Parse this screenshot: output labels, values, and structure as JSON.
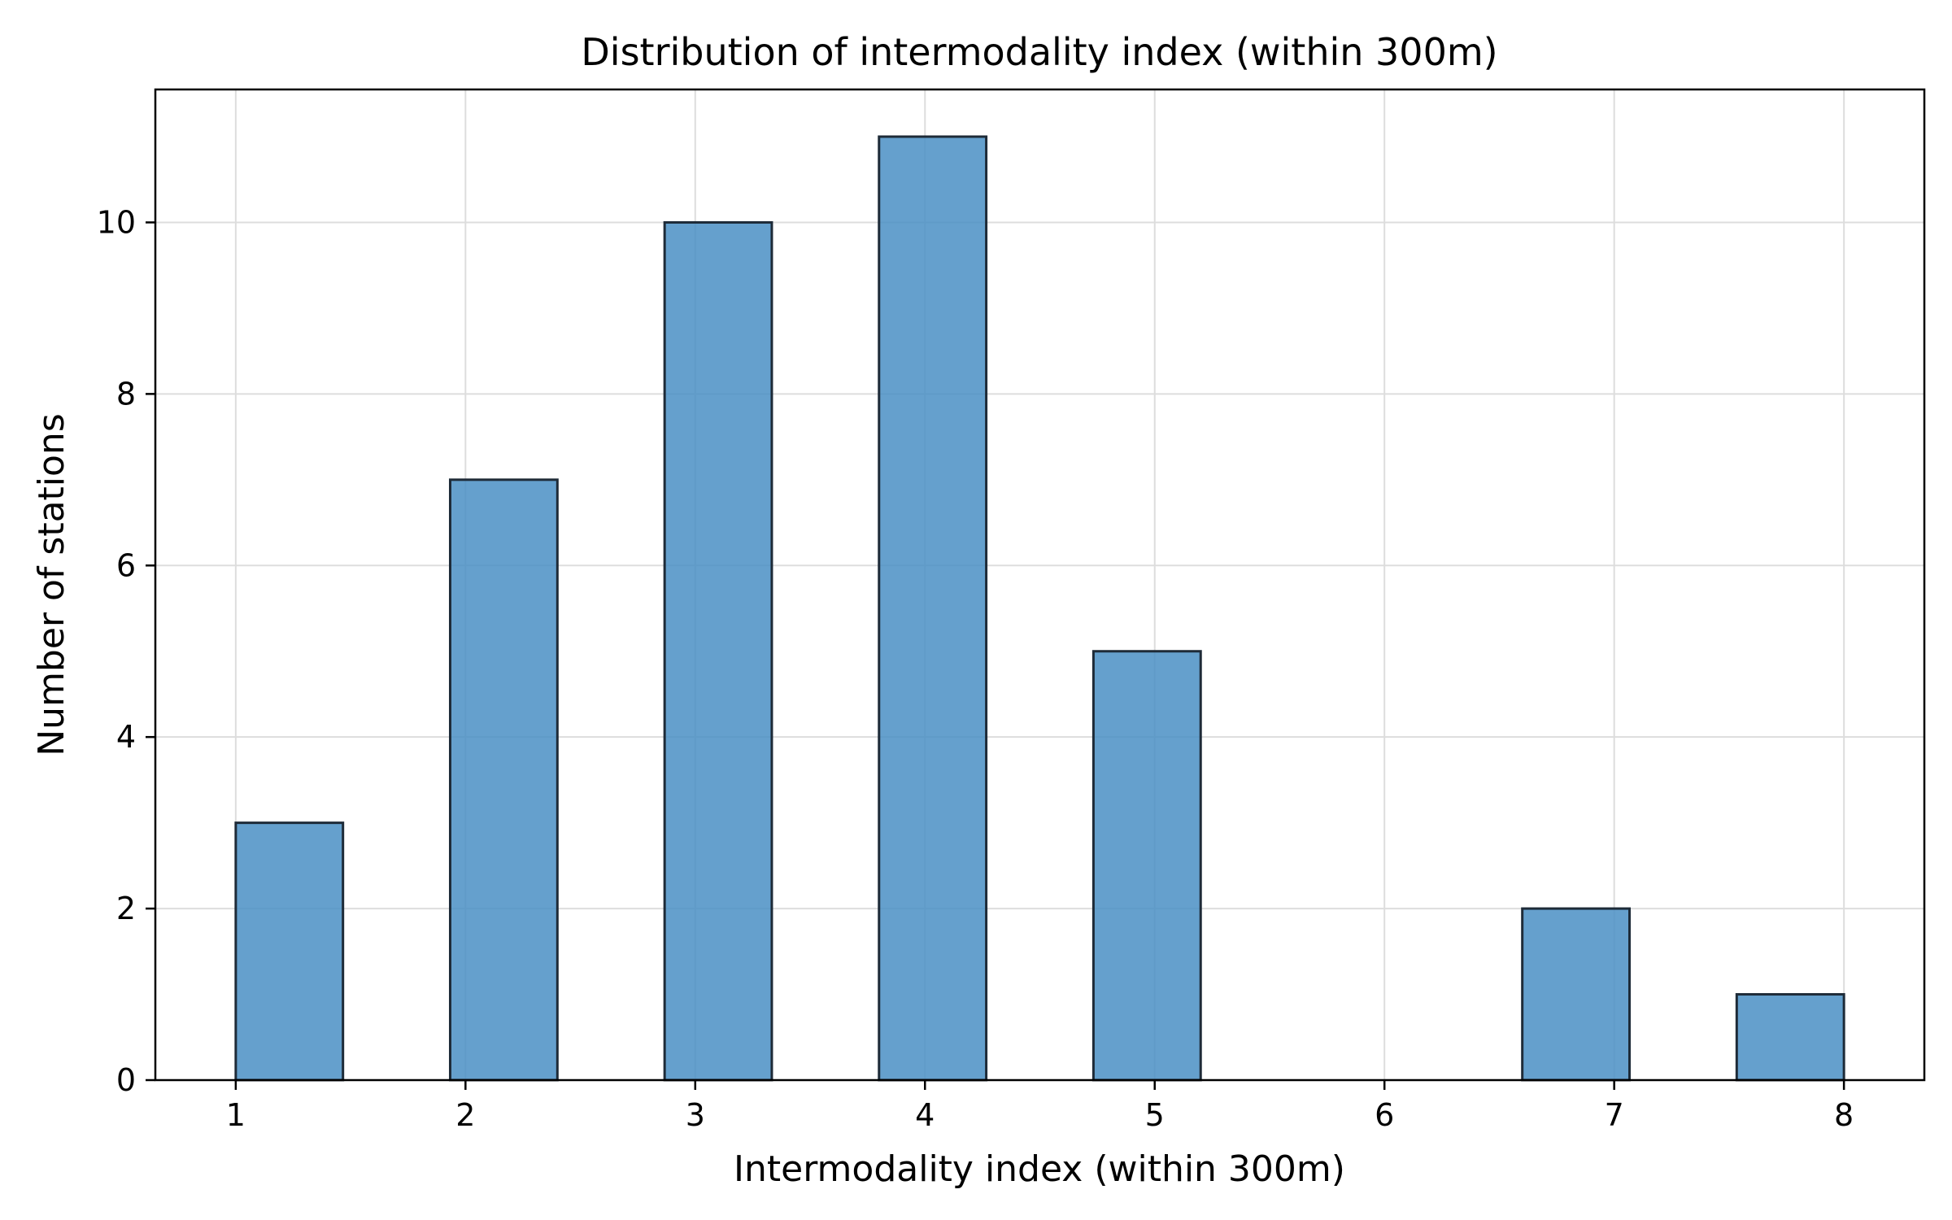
{
  "chart_data": {
    "type": "bar",
    "title": "Distribution of intermodality index (within 300m)",
    "xlabel": "Intermodality index (within 300m)",
    "ylabel": "Number of stations",
    "bins": [
      {
        "start": 1.0,
        "end": 1.4667,
        "count": 3
      },
      {
        "start": 1.9333,
        "end": 2.4,
        "count": 7
      },
      {
        "start": 2.8667,
        "end": 3.3333,
        "count": 10
      },
      {
        "start": 3.8,
        "end": 4.2667,
        "count": 11
      },
      {
        "start": 4.7333,
        "end": 5.2,
        "count": 5
      },
      {
        "start": 5.6667,
        "end": 6.1333,
        "count": 0
      },
      {
        "start": 6.6,
        "end": 7.0667,
        "count": 2
      },
      {
        "start": 7.5333,
        "end": 8.0,
        "count": 1
      }
    ],
    "xticks": [
      1,
      2,
      3,
      4,
      5,
      6,
      7,
      8
    ],
    "yticks": [
      0,
      2,
      4,
      6,
      8,
      10
    ],
    "xlim": [
      0.65,
      8.35
    ],
    "ylim": [
      0,
      11.55
    ],
    "grid": true,
    "colors": {
      "bar_fill": "#4a8fc4",
      "bar_edge": "#1e2b38",
      "grid": "#dddddd",
      "axis": "#000000"
    }
  }
}
